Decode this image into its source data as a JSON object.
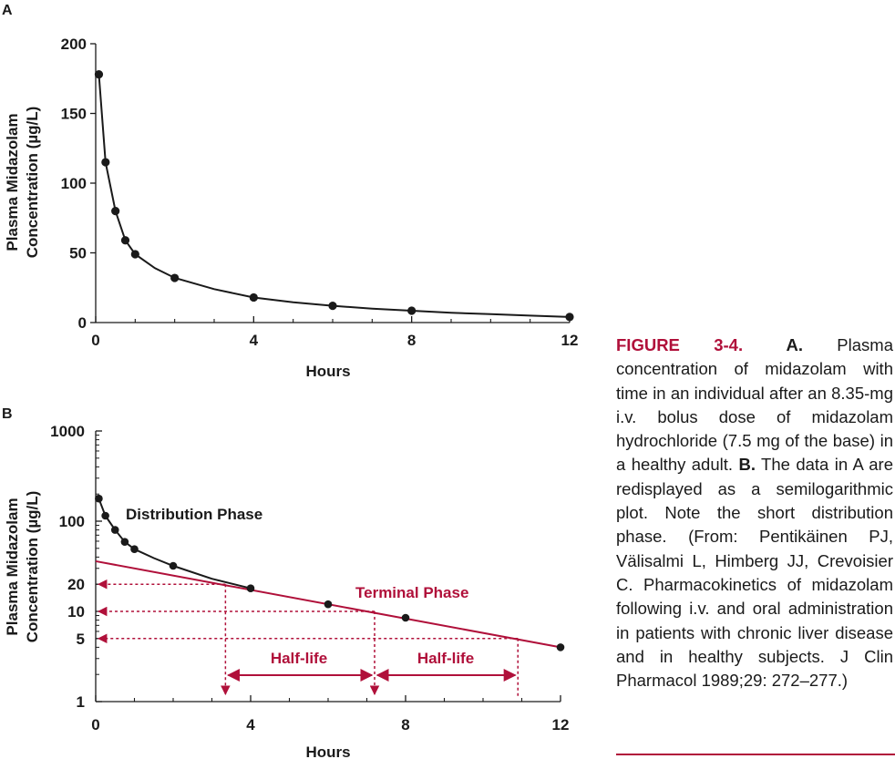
{
  "colors": {
    "accent": "#b0103a",
    "ink": "#1a1a1a"
  },
  "chart_data": [
    {
      "panel": "A",
      "type": "line",
      "xlabel": "Hours",
      "ylabel_line1": "Plasma Midazolam",
      "ylabel_line2": "Concentration (µg/L)",
      "xlim": [
        0,
        12
      ],
      "ylim": [
        0,
        200
      ],
      "x_ticks": [
        0,
        4,
        8,
        12
      ],
      "y_ticks": [
        0,
        50,
        100,
        150,
        200
      ],
      "series": [
        {
          "x": [
            0.08,
            0.25,
            0.5,
            0.75,
            1,
            2,
            4,
            6,
            8,
            12
          ],
          "y": [
            178,
            115,
            80,
            59,
            49,
            32,
            18,
            12,
            8.5,
            4
          ]
        }
      ],
      "curve": {
        "x": [
          0.08,
          0.25,
          0.5,
          0.75,
          1,
          1.5,
          2,
          3,
          4,
          5,
          6,
          7,
          8,
          9,
          10,
          11,
          12
        ],
        "y": [
          178,
          115,
          80,
          59,
          49,
          39,
          32,
          24,
          18,
          14.5,
          12,
          10,
          8.5,
          7,
          6,
          5,
          4
        ]
      },
      "grid": false
    },
    {
      "panel": "B",
      "type": "line",
      "scale": "log",
      "xlabel": "Hours",
      "ylabel_line1": "Plasma Midazolam",
      "ylabel_line2": "Concentration (µg/L)",
      "xlim": [
        0,
        12
      ],
      "ylim": [
        1,
        1000
      ],
      "x_ticks": [
        0,
        4,
        8,
        12
      ],
      "y_ticks": [
        1,
        5,
        10,
        20,
        100,
        1000
      ],
      "series": [
        {
          "x": [
            0.08,
            0.25,
            0.5,
            0.75,
            1,
            2,
            4,
            6,
            8,
            12
          ],
          "y": [
            178,
            115,
            80,
            59,
            49,
            32,
            18,
            12,
            8.5,
            4
          ]
        }
      ],
      "curve": {
        "x": [
          0.08,
          0.25,
          0.5,
          0.75,
          1,
          1.5,
          2,
          3,
          4
        ],
        "y": [
          178,
          115,
          80,
          59,
          49,
          39,
          32,
          23,
          18
        ]
      },
      "terminal_line": {
        "x": [
          0,
          12
        ],
        "y": [
          36,
          4
        ]
      },
      "half_life_markers": [
        {
          "y": 20,
          "x": 3.35
        },
        {
          "y": 10,
          "x": 7.2
        },
        {
          "y": 5,
          "x": 10.9
        }
      ],
      "annotations": {
        "distribution": "Distribution Phase",
        "terminal": "Terminal Phase",
        "half_life_1": "Half-life",
        "half_life_2": "Half-life"
      },
      "grid": false
    }
  ],
  "caption": {
    "label": "FIGURE 3-4.",
    "a_label": "A.",
    "a_text": "Plasma concentration of midazolam with time in an individual after an 8.35-mg i.v. bolus dose of midazolam hydrochloride (7.5 mg of the base) in a healthy adult.",
    "b_label": "B.",
    "b_text": "The data in A are redisplayed as a semilogarithmic plot. Note the short distribution phase. (From: Pentikäinen PJ, Välisalmi L, Himberg JJ, Crevoisier C. Pharmacokinetics of midazolam following i.v. and oral administration in patients with chronic liver disease and in healthy subjects. J Clin Pharmacol 1989;29: 272–277.)"
  }
}
